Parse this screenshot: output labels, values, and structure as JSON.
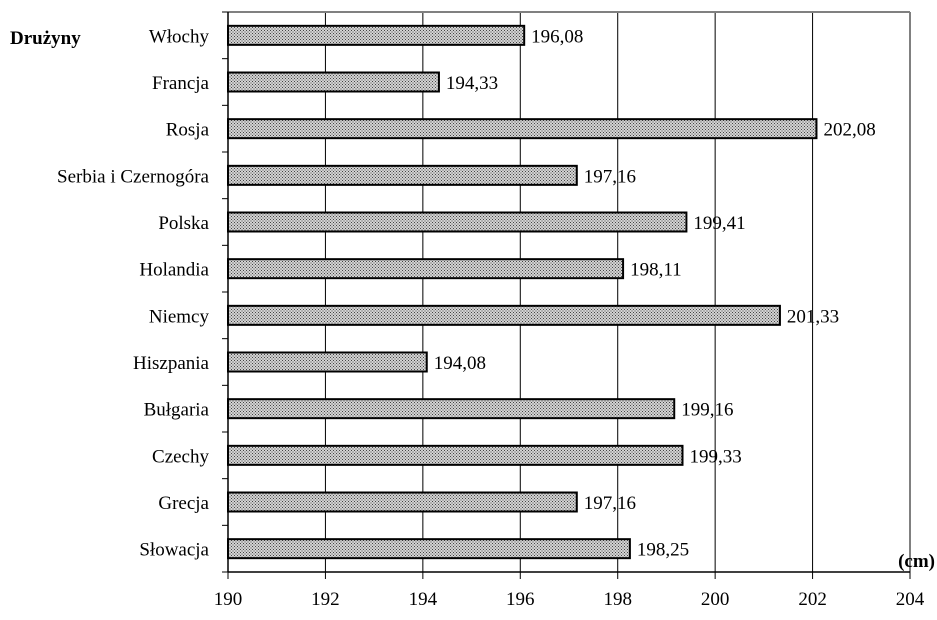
{
  "chart_data": {
    "type": "bar",
    "orientation": "horizontal",
    "ylabel": "Drużyny",
    "xlabel_unit": "(cm)",
    "xlim": [
      190,
      204
    ],
    "xticks": [
      "190",
      "192",
      "194",
      "196",
      "198",
      "200",
      "202",
      "204"
    ],
    "grid": true,
    "categories": [
      "Włochy",
      "Francja",
      "Rosja",
      "Serbia i Czernogóra",
      "Polska",
      "Holandia",
      "Niemcy",
      "Hiszpania",
      "Bułgaria",
      "Czechy",
      "Grecja",
      "Słowacja"
    ],
    "values": [
      196.08,
      194.33,
      202.08,
      197.16,
      199.41,
      198.11,
      201.33,
      194.08,
      199.16,
      199.33,
      197.16,
      198.25
    ],
    "value_labels": [
      "196,08",
      "194,33",
      "202,08",
      "197,16",
      "199,41",
      "198,11",
      "201,33",
      "194,08",
      "199,16",
      "199,33",
      "197,16",
      "198,25"
    ],
    "bar_fill": "patterned-gray",
    "grid_color": "#000000"
  }
}
